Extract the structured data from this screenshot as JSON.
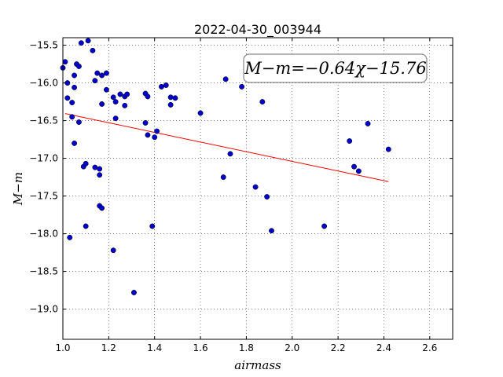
{
  "chart_data": {
    "type": "scatter",
    "title": "2022-04-30_003944",
    "xlabel": "airmass",
    "ylabel": "M−m",
    "xlim": [
      1.0,
      2.7
    ],
    "ylim": [
      -19.4,
      -15.4
    ],
    "y_inverted": true,
    "x_ticks": [
      1.0,
      1.2,
      1.4,
      1.6,
      1.8,
      2.0,
      2.2,
      2.4,
      2.6
    ],
    "x_tick_labels": [
      "1.0",
      "1.2",
      "1.4",
      "1.6",
      "1.8",
      "2.0",
      "2.2",
      "2.4",
      "2.6"
    ],
    "y_ticks": [
      -15.5,
      -16.0,
      -16.5,
      -17.0,
      -17.5,
      -18.0,
      -18.5,
      -19.0
    ],
    "y_tick_labels": [
      "−15.5",
      "−16.0",
      "−16.5",
      "−17.0",
      "−17.5",
      "−18.0",
      "−18.5",
      "−19.0"
    ],
    "grid": true,
    "annotation": "M−m=−0.64χ−15.76",
    "annotation_position": "top-right",
    "point_color": "#0000cc",
    "line_color": "#ff0000",
    "fit": {
      "slope": -0.64,
      "intercept": -15.76,
      "x_range": [
        1.01,
        2.42
      ]
    },
    "points": [
      [
        1.0,
        -15.8
      ],
      [
        1.01,
        -15.72
      ],
      [
        1.02,
        -16.0
      ],
      [
        1.02,
        -16.2
      ],
      [
        1.04,
        -16.26
      ],
      [
        1.04,
        -16.45
      ],
      [
        1.05,
        -15.9
      ],
      [
        1.05,
        -16.06
      ],
      [
        1.05,
        -16.8
      ],
      [
        1.06,
        -15.75
      ],
      [
        1.07,
        -15.78
      ],
      [
        1.07,
        -16.52
      ],
      [
        1.08,
        -15.47
      ],
      [
        1.09,
        -17.11
      ],
      [
        1.1,
        -17.07
      ],
      [
        1.1,
        -17.9
      ],
      [
        1.11,
        -15.44
      ],
      [
        1.13,
        -15.57
      ],
      [
        1.14,
        -15.97
      ],
      [
        1.14,
        -17.12
      ],
      [
        1.15,
        -15.87
      ],
      [
        1.16,
        -17.14
      ],
      [
        1.16,
        -17.22
      ],
      [
        1.16,
        -17.63
      ],
      [
        1.17,
        -15.9
      ],
      [
        1.17,
        -16.28
      ],
      [
        1.17,
        -17.66
      ],
      [
        1.19,
        -15.87
      ],
      [
        1.19,
        -16.09
      ],
      [
        1.22,
        -16.19
      ],
      [
        1.23,
        -16.25
      ],
      [
        1.23,
        -16.47
      ],
      [
        1.25,
        -16.15
      ],
      [
        1.27,
        -16.18
      ],
      [
        1.27,
        -16.3
      ],
      [
        1.28,
        -16.15
      ],
      [
        1.22,
        -18.22
      ],
      [
        1.31,
        -18.78
      ],
      [
        1.36,
        -16.53
      ],
      [
        1.36,
        -16.14
      ],
      [
        1.37,
        -16.18
      ],
      [
        1.37,
        -16.69
      ],
      [
        1.39,
        -17.9
      ],
      [
        1.4,
        -16.72
      ],
      [
        1.41,
        -16.64
      ],
      [
        1.43,
        -16.05
      ],
      [
        1.45,
        -16.03
      ],
      [
        1.47,
        -16.19
      ],
      [
        1.47,
        -16.29
      ],
      [
        1.49,
        -16.2
      ],
      [
        1.03,
        -18.05
      ],
      [
        1.6,
        -16.4
      ],
      [
        1.7,
        -17.25
      ],
      [
        1.71,
        -15.95
      ],
      [
        1.73,
        -16.94
      ],
      [
        1.78,
        -16.05
      ],
      [
        1.84,
        -17.38
      ],
      [
        1.87,
        -16.25
      ],
      [
        1.89,
        -17.51
      ],
      [
        1.91,
        -17.96
      ],
      [
        2.14,
        -17.9
      ],
      [
        2.25,
        -16.77
      ],
      [
        2.27,
        -17.11
      ],
      [
        2.29,
        -17.17
      ],
      [
        2.33,
        -16.54
      ],
      [
        2.42,
        -16.88
      ]
    ]
  }
}
